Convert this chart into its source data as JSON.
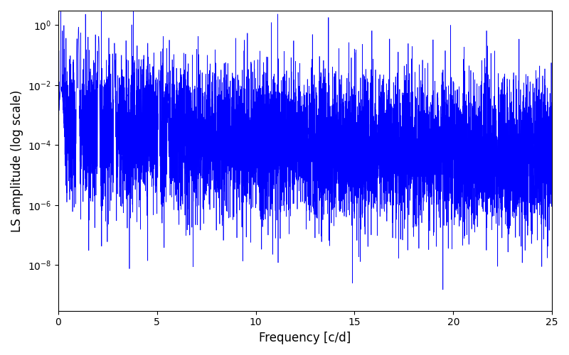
{
  "xlabel": "Frequency [c/d]",
  "ylabel": "LS amplitude (log scale)",
  "line_color": "#0000ff",
  "line_width": 0.5,
  "xlim": [
    0,
    25
  ],
  "ylim_bottom": 3e-10,
  "ylim_top": 3.0,
  "yscale": "log",
  "figsize": [
    8.0,
    5.0
  ],
  "dpi": 100,
  "n_points": 8000,
  "seed": 17,
  "bg_color": "#ffffff"
}
